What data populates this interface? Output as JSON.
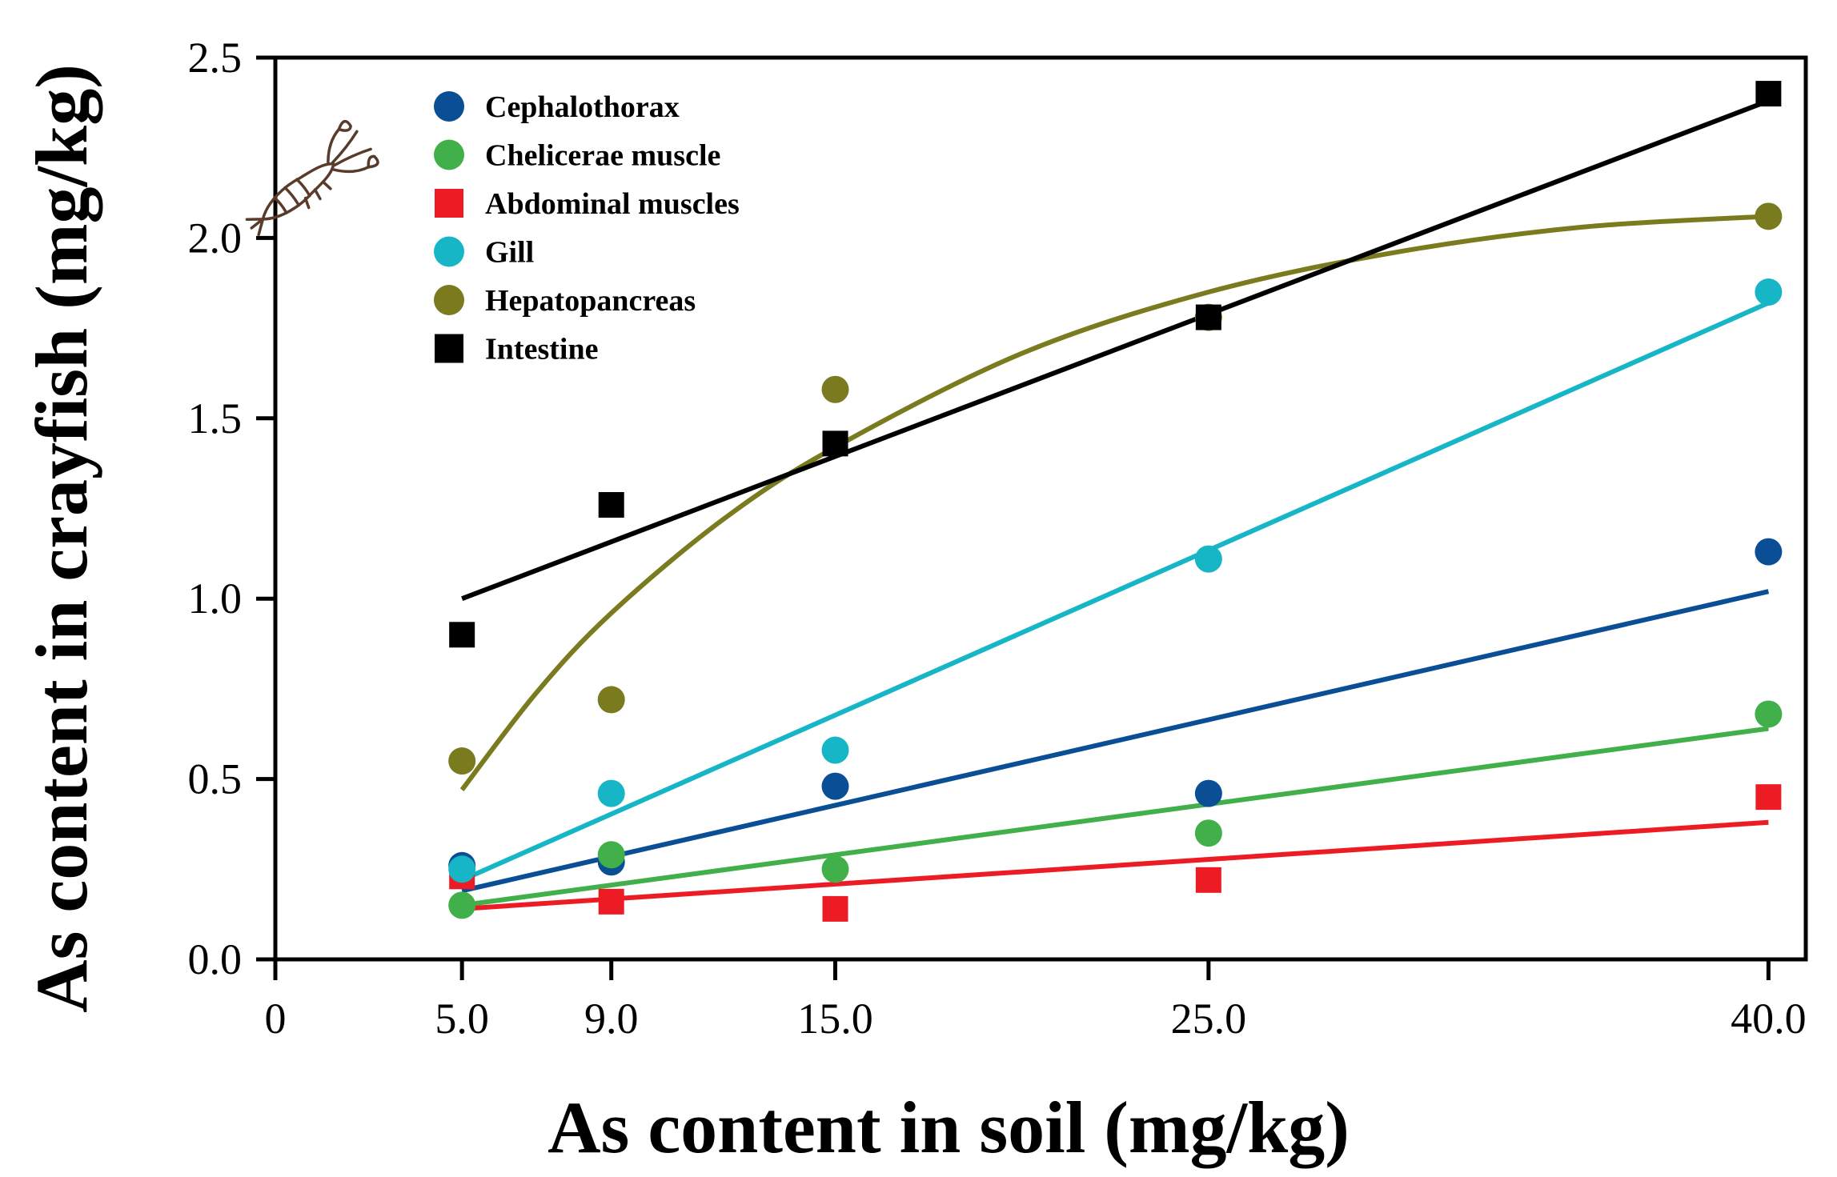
{
  "chart_data": {
    "type": "scatter",
    "xlabel": "As content in soil (mg/kg)",
    "ylabel": "As content in crayfish (mg/kg)",
    "xlim": [
      0,
      41
    ],
    "ylim": [
      0,
      2.5
    ],
    "x_ticks": [
      0,
      5,
      9,
      15,
      25,
      40
    ],
    "x_tick_labels": [
      "0",
      "5.0",
      "9.0",
      "15.0",
      "25.0",
      "40.0"
    ],
    "y_ticks": [
      0,
      0.5,
      1,
      1.5,
      2,
      2.5
    ],
    "y_tick_labels": [
      "0.0",
      "0.5",
      "1.0",
      "1.5",
      "2.0",
      "2.5"
    ],
    "grid": false,
    "legend_position": "top-left",
    "decoration_icon": "crayfish-icon",
    "x": [
      5,
      9,
      15,
      25,
      40
    ],
    "series": [
      {
        "name": "Cephalothorax",
        "color": "#0a4f96",
        "marker": "circle",
        "values": [
          0.26,
          0.27,
          0.48,
          0.46,
          1.13
        ],
        "fit": {
          "type": "linear",
          "x": [
            5,
            40
          ],
          "y": [
            0.19,
            1.02
          ]
        }
      },
      {
        "name": "Chelicerae muscle",
        "color": "#41b04a",
        "marker": "circle",
        "values": [
          0.15,
          0.29,
          0.25,
          0.35,
          0.68
        ],
        "fit": {
          "type": "linear",
          "x": [
            5,
            40
          ],
          "y": [
            0.15,
            0.64
          ]
        }
      },
      {
        "name": "Abdominal muscles",
        "color": "#ed1c24",
        "marker": "square",
        "values": [
          0.23,
          0.16,
          0.14,
          0.22,
          0.45
        ],
        "fit": {
          "type": "linear",
          "x": [
            5,
            40
          ],
          "y": [
            0.14,
            0.38
          ]
        }
      },
      {
        "name": "Gill",
        "color": "#17b6c6",
        "marker": "circle",
        "values": [
          0.25,
          0.46,
          0.58,
          1.11,
          1.85
        ],
        "fit": {
          "type": "linear",
          "x": [
            5,
            40
          ],
          "y": [
            0.22,
            1.82
          ]
        }
      },
      {
        "name": "Hepatopancreas",
        "color": "#7a7a1f",
        "marker": "circle",
        "values": [
          0.55,
          0.72,
          1.58,
          1.78,
          2.06
        ],
        "fit": {
          "type": "curve",
          "x": [
            5,
            7,
            9,
            12,
            15,
            20,
            25,
            30,
            35,
            40
          ],
          "y": [
            0.47,
            0.74,
            0.96,
            1.22,
            1.42,
            1.68,
            1.85,
            1.96,
            2.03,
            2.06
          ]
        }
      },
      {
        "name": "Intestine",
        "color": "#000000",
        "marker": "square",
        "values": [
          0.9,
          1.26,
          1.43,
          1.78,
          2.4
        ],
        "fit": {
          "type": "linear",
          "x": [
            5,
            40
          ],
          "y": [
            1.0,
            2.38
          ]
        }
      }
    ]
  }
}
